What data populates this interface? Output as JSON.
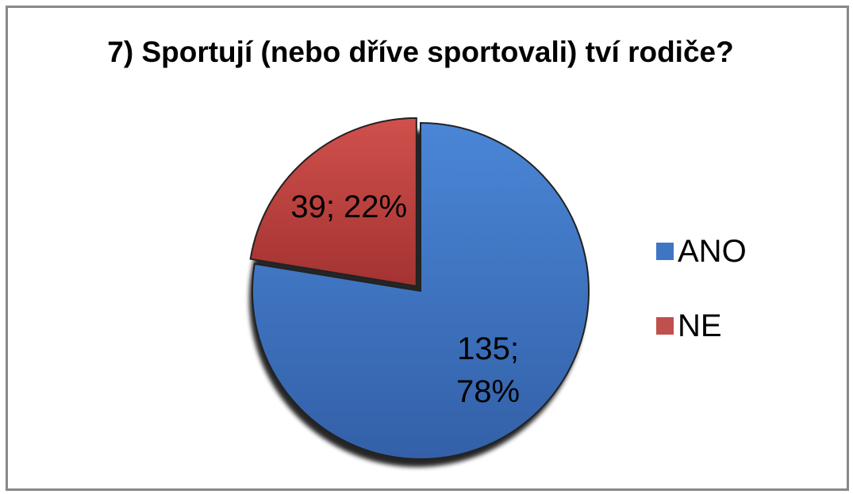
{
  "chart_data": {
    "type": "pie",
    "title": "7) Sportují (nebo dříve sportovali) tví rodiče?",
    "categories": [
      "ANO",
      "NE"
    ],
    "values": [
      135,
      39
    ],
    "value_labels": [
      "135; 78%",
      "39; 22%"
    ],
    "colors": [
      "#3f76c4",
      "#c0504d"
    ],
    "legend": "right"
  }
}
